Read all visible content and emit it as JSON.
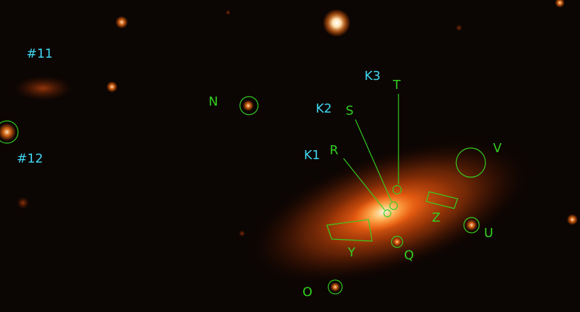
{
  "colors": {
    "background": "#0b0503",
    "galaxy_core": "#fff0d0",
    "galaxy_glow": "#ff6a10",
    "region_green": "#33d11f",
    "label_cyan": "#3fd7f0"
  },
  "labels_cyan": {
    "k1": "K1",
    "k2": "K2",
    "k3": "K3",
    "n11": "#11",
    "n12": "#12"
  },
  "labels_green": {
    "n": "N",
    "o": "O",
    "q": "Q",
    "r": "R",
    "s": "S",
    "t": "T",
    "u": "U",
    "v": "V",
    "y": "Y",
    "z": "Z"
  }
}
